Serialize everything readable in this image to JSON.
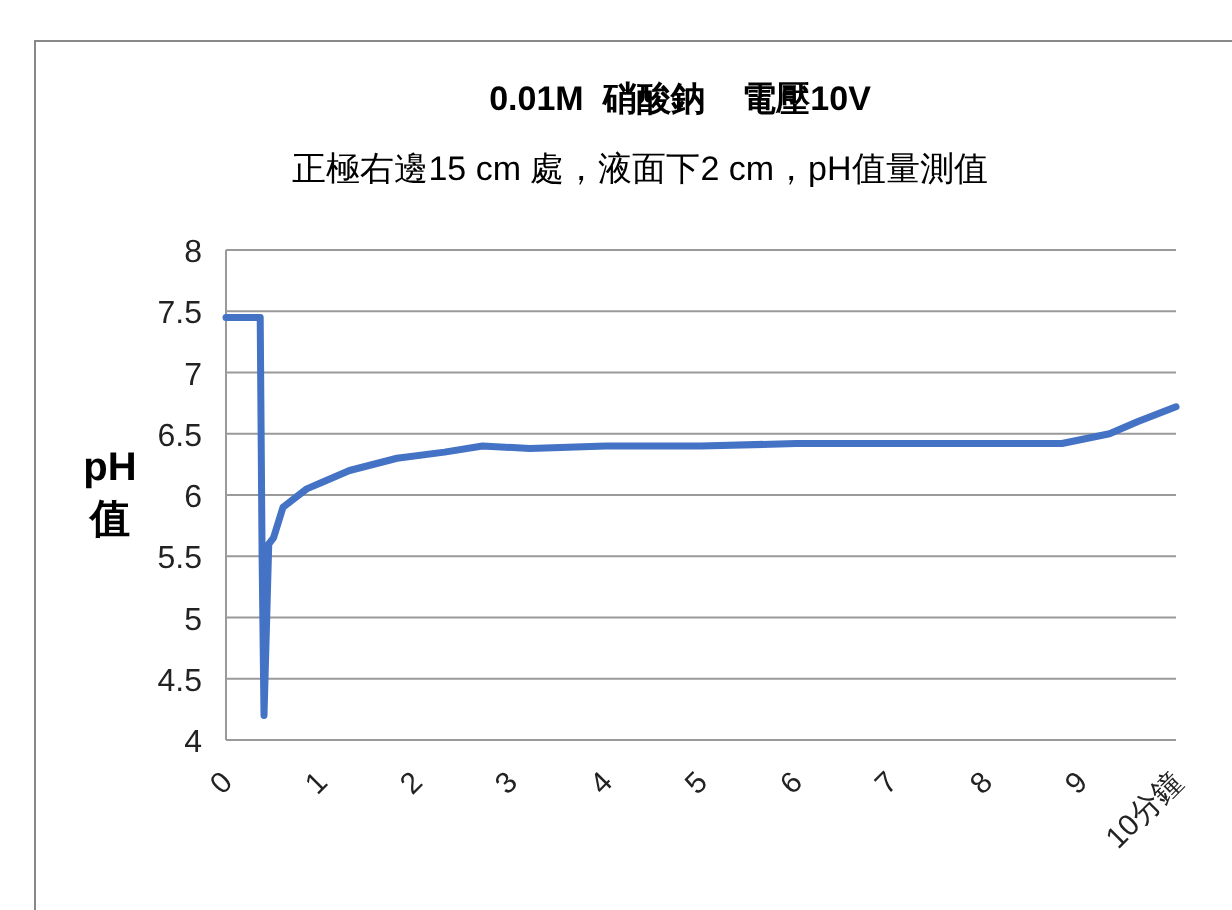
{
  "chart_data": {
    "type": "line",
    "title": "0.01M  硝酸鈉    電壓10V",
    "subtitle": "正極右邊15 cm 處，液面下2 cm，pH值量測值",
    "ylabel": "pH\n值",
    "series": [
      {
        "color": "#4472c4",
        "x": [
          0,
          0.2,
          0.36,
          0.38,
          0.4,
          0.45,
          0.5,
          0.6,
          0.85,
          1.0,
          1.3,
          1.8,
          2.3,
          2.7,
          3.2,
          4,
          5,
          6,
          7,
          8,
          8.8,
          9.3,
          9.6,
          10
        ],
        "values": [
          7.45,
          7.45,
          7.45,
          5.5,
          4.2,
          5.6,
          5.65,
          5.9,
          6.05,
          6.1,
          6.2,
          6.3,
          6.35,
          6.4,
          6.38,
          6.4,
          6.4,
          6.42,
          6.42,
          6.42,
          6.42,
          6.5,
          6.6,
          6.72
        ]
      }
    ],
    "xlim": [
      0,
      10
    ],
    "xticks": [
      0,
      1,
      2,
      3,
      4,
      5,
      6,
      7,
      8,
      9,
      {
        "value": 10,
        "label": "10分鐘"
      }
    ],
    "ylim": [
      4,
      8
    ],
    "yticks": [
      4,
      4.5,
      5,
      5.5,
      6,
      6.5,
      7,
      7.5,
      8
    ],
    "grid": "y",
    "marker": "none",
    "line_style": "solid"
  }
}
